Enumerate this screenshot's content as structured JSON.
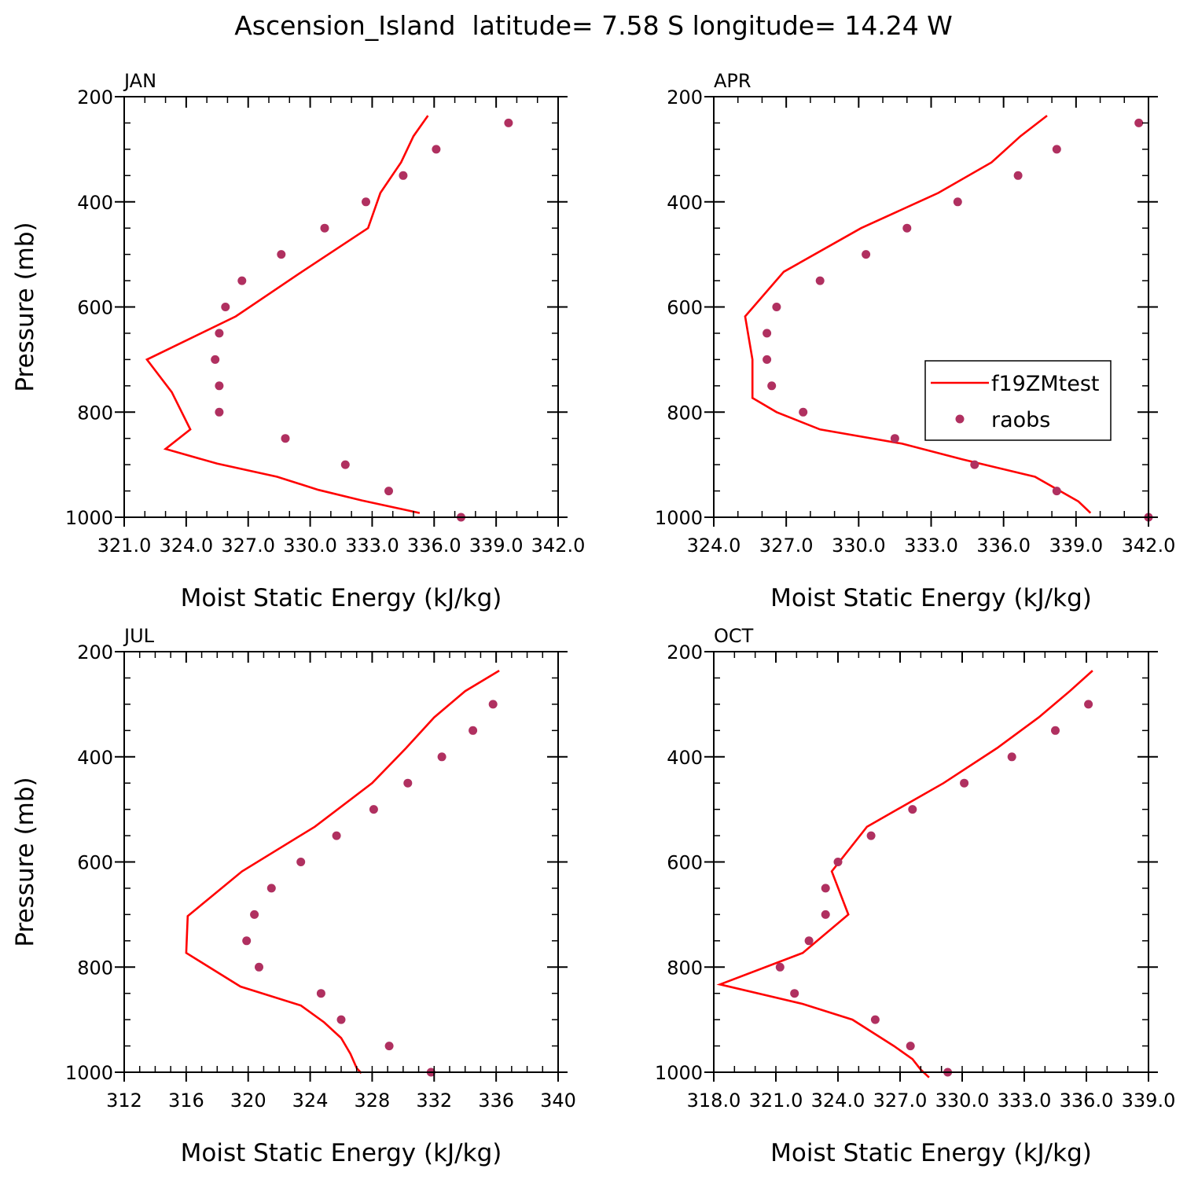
{
  "figure": {
    "title": "Ascension_Island  latitude= 7.58 S longitude= 14.24 W"
  },
  "colors": {
    "model_line": "#ff0000",
    "obs_marker": "#b03060",
    "axis": "#000000"
  },
  "legend": {
    "model_label": "f19ZMtest",
    "obs_label": "raobs"
  },
  "chart_data": [
    {
      "type": "line",
      "panel_label": "JAN",
      "xlabel": "Moist Static Energy (kJ/kg)",
      "ylabel": "Pressure (mb)",
      "xlim": [
        321,
        342
      ],
      "ylim": [
        1000,
        200
      ],
      "x_ticks": [
        321,
        324,
        327,
        330,
        333,
        336,
        339,
        342
      ],
      "x_tick_labels": [
        "321.0",
        "324.0",
        "327.0",
        "330.0",
        "333.0",
        "336.0",
        "339.0",
        "342.0"
      ],
      "x_minor_step": 1,
      "y_ticks": [
        200,
        400,
        600,
        800,
        1000
      ],
      "y_tick_labels": [
        "200",
        "400",
        "600",
        "800",
        "1000"
      ],
      "y_minor_step": 50,
      "legend_position": "none",
      "series": [
        {
          "name": "f19ZMtest",
          "kind": "line",
          "x": [
            335.7,
            335.0,
            334.4,
            333.4,
            332.8,
            329.6,
            326.4,
            322.1,
            323.3,
            324.2,
            323.0,
            325.5,
            328.4,
            330.4,
            332.5,
            335.3
          ],
          "y": [
            236,
            275,
            325,
            383,
            450,
            533,
            618,
            700,
            762,
            833,
            870,
            898,
            923,
            948,
            968,
            992
          ]
        },
        {
          "name": "raobs",
          "kind": "scatter",
          "x": [
            339.6,
            336.1,
            334.5,
            332.7,
            330.7,
            328.6,
            326.7,
            325.9,
            325.6,
            325.4,
            325.6,
            325.6,
            328.8,
            331.7,
            333.8,
            337.3
          ],
          "y": [
            250,
            300,
            350,
            400,
            450,
            500,
            550,
            600,
            650,
            700,
            750,
            800,
            850,
            900,
            950,
            1000
          ]
        }
      ]
    },
    {
      "type": "line",
      "panel_label": "APR",
      "xlabel": "Moist Static Energy (kJ/kg)",
      "ylabel": "",
      "xlim": [
        324,
        342
      ],
      "ylim": [
        1000,
        200
      ],
      "x_ticks": [
        324,
        327,
        330,
        333,
        336,
        339,
        342
      ],
      "x_tick_labels": [
        "324.0",
        "327.0",
        "330.0",
        "333.0",
        "336.0",
        "339.0",
        "342.0"
      ],
      "x_minor_step": 1,
      "y_ticks": [
        200,
        400,
        600,
        800,
        1000
      ],
      "y_tick_labels": [
        "200",
        "400",
        "600",
        "800",
        "1000"
      ],
      "y_minor_step": 50,
      "legend_position": "right",
      "series": [
        {
          "name": "f19ZMtest",
          "kind": "line",
          "x": [
            337.8,
            336.7,
            335.5,
            333.3,
            330.1,
            326.9,
            325.3,
            325.6,
            325.6,
            326.6,
            328.4,
            331.8,
            334.3,
            337.3,
            339.1,
            339.6
          ],
          "y": [
            236,
            275,
            325,
            383,
            450,
            533,
            618,
            700,
            773,
            800,
            833,
            860,
            890,
            923,
            970,
            992
          ]
        },
        {
          "name": "raobs",
          "kind": "scatter",
          "x": [
            341.6,
            338.2,
            336.6,
            334.1,
            332.0,
            330.3,
            328.4,
            326.6,
            326.2,
            326.2,
            326.4,
            327.7,
            331.5,
            334.8,
            338.2,
            342.0
          ],
          "y": [
            250,
            300,
            350,
            400,
            450,
            500,
            550,
            600,
            650,
            700,
            750,
            800,
            850,
            900,
            950,
            1000
          ]
        }
      ]
    },
    {
      "type": "line",
      "panel_label": "JUL",
      "xlabel": "Moist Static Energy (kJ/kg)",
      "ylabel": "Pressure (mb)",
      "xlim": [
        312,
        340
      ],
      "ylim": [
        1000,
        200
      ],
      "x_ticks": [
        312,
        316,
        320,
        324,
        328,
        332,
        336,
        340
      ],
      "x_tick_labels": [
        "312",
        "316",
        "320",
        "324",
        "328",
        "332",
        "336",
        "340"
      ],
      "x_minor_step": 1,
      "y_ticks": [
        200,
        400,
        600,
        800,
        1000
      ],
      "y_tick_labels": [
        "200",
        "400",
        "600",
        "800",
        "1000"
      ],
      "y_minor_step": 50,
      "legend_position": "none",
      "series": [
        {
          "name": "f19ZMtest",
          "kind": "line",
          "x": [
            336.2,
            334.0,
            332.0,
            330.2,
            328.0,
            324.3,
            319.6,
            316.1,
            316.0,
            319.5,
            323.4,
            324.9,
            326.0,
            326.6,
            327.0,
            327.3
          ],
          "y": [
            236,
            275,
            325,
            383,
            450,
            533,
            618,
            703,
            773,
            837,
            873,
            905,
            935,
            965,
            992,
            1002
          ]
        },
        {
          "name": "raobs",
          "kind": "scatter",
          "x": [
            335.8,
            334.5,
            332.5,
            330.3,
            328.1,
            325.7,
            323.4,
            321.5,
            320.4,
            319.9,
            320.7,
            324.7,
            326.0,
            329.1,
            331.8
          ],
          "y": [
            300,
            350,
            400,
            450,
            500,
            550,
            600,
            650,
            700,
            750,
            800,
            850,
            900,
            950,
            1000
          ]
        }
      ]
    },
    {
      "type": "line",
      "panel_label": "OCT",
      "xlabel": "Moist Static Energy (kJ/kg)",
      "ylabel": "",
      "xlim": [
        318,
        339
      ],
      "ylim": [
        1000,
        200
      ],
      "x_ticks": [
        318,
        321,
        324,
        327,
        330,
        333,
        336,
        339
      ],
      "x_tick_labels": [
        "318.0",
        "321.0",
        "324.0",
        "327.0",
        "330.0",
        "333.0",
        "336.0",
        "339.0"
      ],
      "x_minor_step": 1,
      "y_ticks": [
        200,
        400,
        600,
        800,
        1000
      ],
      "y_tick_labels": [
        "200",
        "400",
        "600",
        "800",
        "1000"
      ],
      "y_minor_step": 50,
      "legend_position": "none",
      "series": [
        {
          "name": "f19ZMtest",
          "kind": "line",
          "x": [
            336.3,
            335.2,
            333.7,
            331.7,
            329.1,
            325.4,
            323.7,
            324.5,
            322.3,
            318.3,
            322.3,
            324.7,
            326.7,
            327.6,
            328.0,
            328.4
          ],
          "y": [
            236,
            275,
            325,
            383,
            450,
            533,
            618,
            700,
            773,
            833,
            870,
            900,
            950,
            975,
            995,
            1010
          ]
        },
        {
          "name": "raobs",
          "kind": "scatter",
          "x": [
            336.1,
            334.5,
            332.4,
            330.1,
            327.6,
            325.6,
            324.0,
            323.4,
            323.4,
            322.6,
            321.2,
            321.9,
            325.8,
            327.5,
            329.3
          ],
          "y": [
            300,
            350,
            400,
            450,
            500,
            550,
            600,
            650,
            700,
            750,
            800,
            850,
            900,
            950,
            1000
          ]
        }
      ]
    }
  ]
}
